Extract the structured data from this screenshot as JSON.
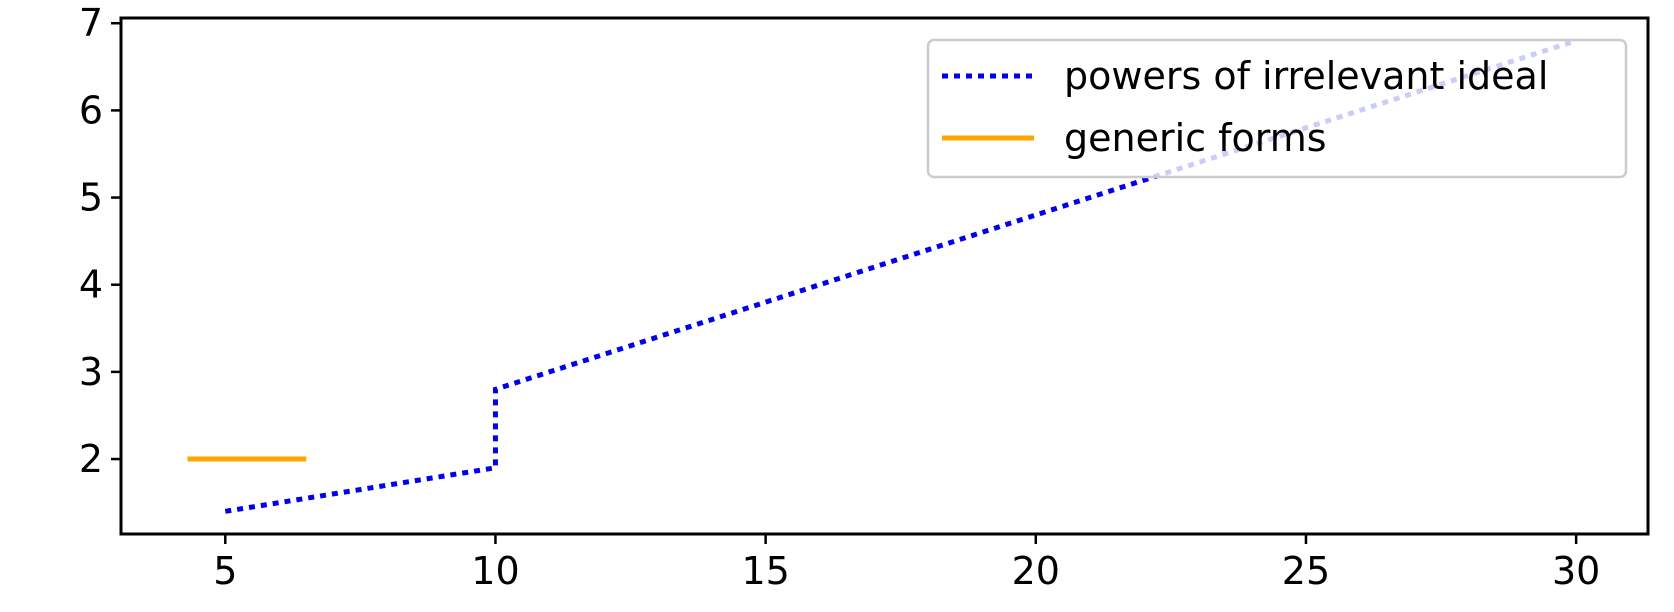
{
  "chart_data": {
    "type": "line",
    "series": [
      {
        "name": "powers of irrelevant ideal",
        "color": "#0000ee",
        "dash": "dotted",
        "x": [
          5,
          10,
          10,
          30
        ],
        "values": [
          1.4,
          1.9,
          2.8,
          6.8
        ]
      },
      {
        "name": "generic forms",
        "color": "#ffa500",
        "dash": "solid",
        "x": [
          4.3,
          6.5
        ],
        "values": [
          2,
          2
        ]
      }
    ],
    "xlim": [
      3.07,
      31.33
    ],
    "ylim": [
      1.14,
      7.06
    ],
    "xticks": [
      5,
      10,
      15,
      20,
      25,
      30
    ],
    "yticks": [
      2,
      3,
      4,
      5,
      6,
      7
    ],
    "legend": "upper right",
    "grid": false
  }
}
